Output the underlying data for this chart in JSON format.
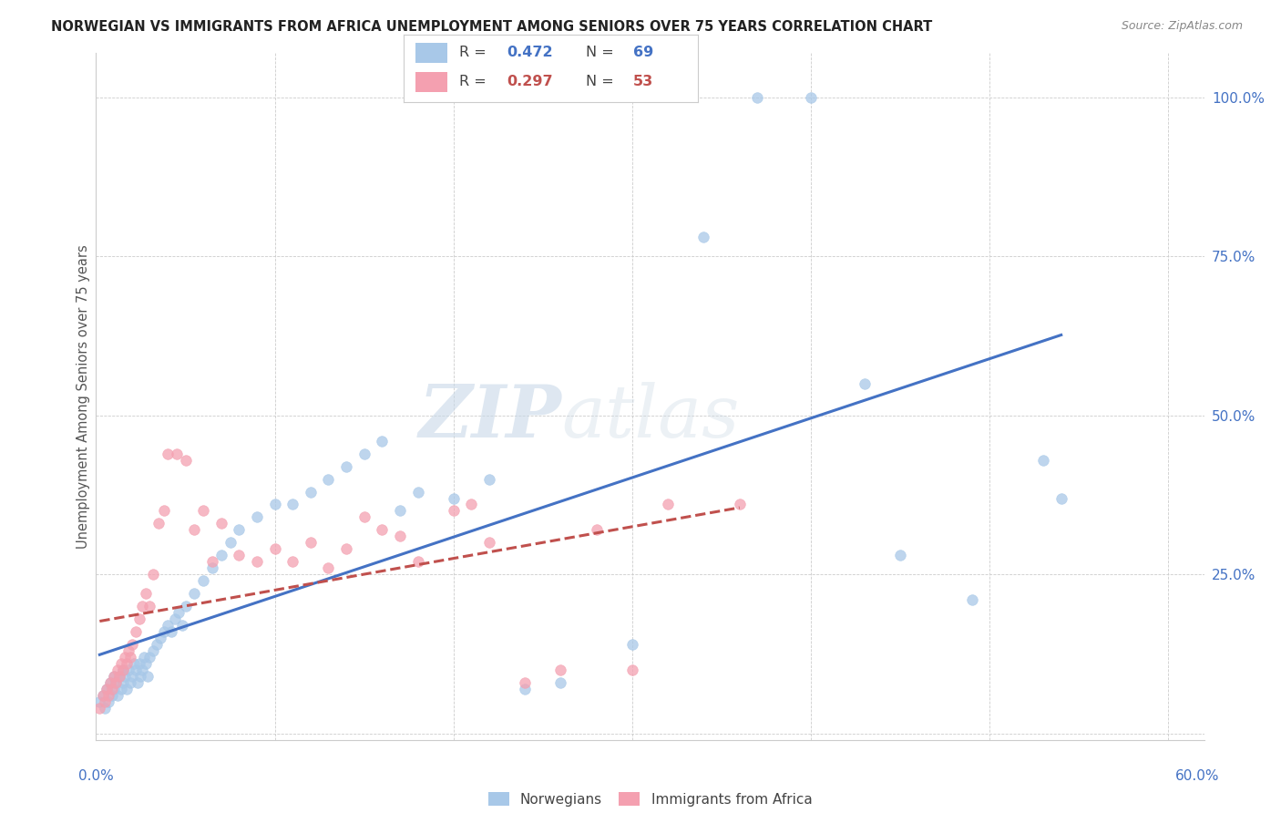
{
  "title": "NORWEGIAN VS IMMIGRANTS FROM AFRICA UNEMPLOYMENT AMONG SENIORS OVER 75 YEARS CORRELATION CHART",
  "source": "Source: ZipAtlas.com",
  "ylabel": "Unemployment Among Seniors over 75 years",
  "xtick_left": "0.0%",
  "xtick_right": "60.0%",
  "xlim": [
    0.0,
    0.62
  ],
  "ylim": [
    -0.01,
    1.07
  ],
  "yticks": [
    0.0,
    0.25,
    0.5,
    0.75,
    1.0
  ],
  "ytick_labels": [
    "",
    "25.0%",
    "50.0%",
    "75.0%",
    "100.0%"
  ],
  "legend_r1": "0.472",
  "legend_n1": "69",
  "legend_r2": "0.297",
  "legend_n2": "53",
  "color_norwegian": "#A8C8E8",
  "color_africa": "#F4A0B0",
  "color_trend_norwegian": "#4472C4",
  "color_trend_africa": "#C0504D",
  "color_axis_labels": "#4472C4",
  "watermark_color": "#D8E8F4",
  "background_color": "#FFFFFF",
  "norwegians_x": [
    0.002,
    0.004,
    0.005,
    0.006,
    0.007,
    0.008,
    0.009,
    0.01,
    0.01,
    0.011,
    0.012,
    0.013,
    0.014,
    0.015,
    0.015,
    0.016,
    0.017,
    0.018,
    0.019,
    0.02,
    0.021,
    0.022,
    0.023,
    0.024,
    0.025,
    0.026,
    0.027,
    0.028,
    0.029,
    0.03,
    0.032,
    0.034,
    0.036,
    0.038,
    0.04,
    0.042,
    0.044,
    0.046,
    0.048,
    0.05,
    0.055,
    0.06,
    0.065,
    0.07,
    0.075,
    0.08,
    0.09,
    0.1,
    0.11,
    0.12,
    0.13,
    0.14,
    0.15,
    0.16,
    0.17,
    0.18,
    0.2,
    0.22,
    0.24,
    0.26,
    0.3,
    0.34,
    0.37,
    0.4,
    0.43,
    0.45,
    0.49,
    0.53,
    0.54
  ],
  "norwegians_y": [
    0.05,
    0.06,
    0.04,
    0.07,
    0.05,
    0.08,
    0.06,
    0.07,
    0.09,
    0.08,
    0.06,
    0.09,
    0.07,
    0.08,
    0.1,
    0.09,
    0.07,
    0.1,
    0.08,
    0.09,
    0.11,
    0.1,
    0.08,
    0.11,
    0.09,
    0.1,
    0.12,
    0.11,
    0.09,
    0.12,
    0.13,
    0.14,
    0.15,
    0.16,
    0.17,
    0.16,
    0.18,
    0.19,
    0.17,
    0.2,
    0.22,
    0.24,
    0.26,
    0.28,
    0.3,
    0.32,
    0.34,
    0.36,
    0.36,
    0.38,
    0.4,
    0.42,
    0.44,
    0.46,
    0.35,
    0.38,
    0.37,
    0.4,
    0.07,
    0.08,
    0.14,
    0.78,
    1.0,
    1.0,
    0.55,
    0.28,
    0.21,
    0.43,
    0.37
  ],
  "africa_x": [
    0.002,
    0.004,
    0.005,
    0.006,
    0.007,
    0.008,
    0.009,
    0.01,
    0.011,
    0.012,
    0.013,
    0.014,
    0.015,
    0.016,
    0.017,
    0.018,
    0.019,
    0.02,
    0.022,
    0.024,
    0.026,
    0.028,
    0.03,
    0.032,
    0.035,
    0.038,
    0.04,
    0.045,
    0.05,
    0.055,
    0.06,
    0.065,
    0.07,
    0.08,
    0.09,
    0.1,
    0.11,
    0.12,
    0.13,
    0.14,
    0.15,
    0.16,
    0.17,
    0.18,
    0.2,
    0.21,
    0.22,
    0.24,
    0.26,
    0.28,
    0.3,
    0.32,
    0.36
  ],
  "africa_y": [
    0.04,
    0.06,
    0.05,
    0.07,
    0.06,
    0.08,
    0.07,
    0.09,
    0.08,
    0.1,
    0.09,
    0.11,
    0.1,
    0.12,
    0.11,
    0.13,
    0.12,
    0.14,
    0.16,
    0.18,
    0.2,
    0.22,
    0.2,
    0.25,
    0.33,
    0.35,
    0.44,
    0.44,
    0.43,
    0.32,
    0.35,
    0.27,
    0.33,
    0.28,
    0.27,
    0.29,
    0.27,
    0.3,
    0.26,
    0.29,
    0.34,
    0.32,
    0.31,
    0.27,
    0.35,
    0.36,
    0.3,
    0.08,
    0.1,
    0.32,
    0.1,
    0.36,
    0.36
  ]
}
